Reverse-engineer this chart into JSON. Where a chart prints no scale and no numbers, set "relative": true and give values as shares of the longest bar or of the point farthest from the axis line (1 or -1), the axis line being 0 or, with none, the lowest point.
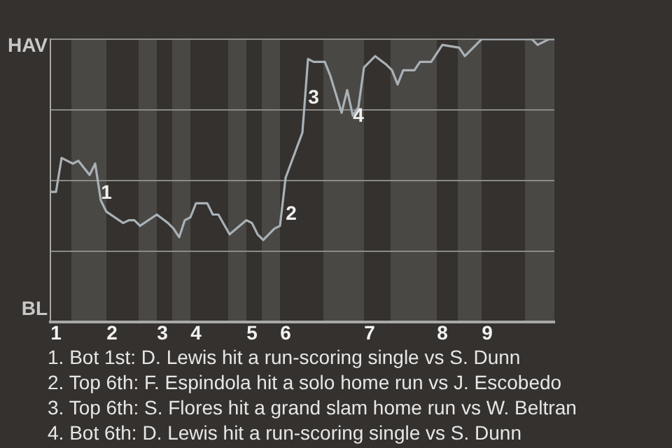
{
  "chart_data": {
    "type": "line",
    "relative": true,
    "categories": [
      null,
      "1",
      null,
      null,
      null,
      null,
      null,
      null,
      null,
      null,
      null,
      "2",
      null,
      null,
      null,
      null,
      null,
      null,
      null,
      null,
      "3",
      null,
      null,
      null,
      null,
      null,
      "4",
      null,
      null,
      null,
      null,
      null,
      null,
      null,
      null,
      null,
      "5",
      null,
      null,
      null,
      null,
      null,
      "6",
      null,
      null,
      null,
      null,
      null,
      null,
      null,
      null,
      null,
      null,
      null,
      null,
      null,
      null,
      "7",
      null,
      null,
      null,
      null,
      null,
      null,
      null,
      null,
      null,
      null,
      null,
      null,
      "8",
      null,
      null,
      null,
      null,
      null,
      null,
      null,
      "9",
      null,
      null,
      null,
      null,
      null,
      null,
      null,
      null,
      null,
      null,
      null,
      null
    ],
    "values": [
      0.46,
      0.46,
      0.58,
      null,
      0.56,
      0.57,
      null,
      0.52,
      0.56,
      0.43,
      0.39,
      null,
      null,
      0.35,
      0.36,
      0.36,
      0.34,
      null,
      null,
      0.38,
      null,
      0.35,
      0.33,
      0.3,
      0.36,
      0.37,
      0.42,
      null,
      0.42,
      0.38,
      0.38,
      null,
      0.31,
      null,
      null,
      0.36,
      0.35,
      0.31,
      0.29,
      null,
      0.33,
      0.34,
      0.51,
      null,
      null,
      0.67,
      0.93,
      0.92,
      null,
      0.92,
      0.87,
      null,
      0.74,
      0.82,
      0.73,
      0.76,
      0.9,
      null,
      0.94,
      null,
      0.91,
      0.89,
      0.84,
      0.89,
      null,
      0.89,
      0.92,
      null,
      0.92,
      null,
      0.98,
      null,
      null,
      0.97,
      0.94,
      null,
      0.98,
      1,
      null,
      null,
      1,
      null,
      1,
      null,
      1,
      null,
      1,
      0.98,
      null,
      1,
      1
    ],
    "color": "#a9b1b6",
    "grid": "y",
    "marker": "none",
    "legend": false,
    "annotations": [
      "1",
      "2",
      "3",
      "4",
      "HAV",
      "BL",
      "1. Bot 1st: D. Lewis hit a run-scoring single vs S. Dunn",
      "2. Top 6th: F. Espindola hit a solo home run vs J. Escobedo",
      "3. Top 6th: S. Flores hit a grand slam home run vs W. Beltran",
      "4. Bot 6th: D. Lewis hit a run-scoring single vs S. Dunn"
    ]
  }
}
